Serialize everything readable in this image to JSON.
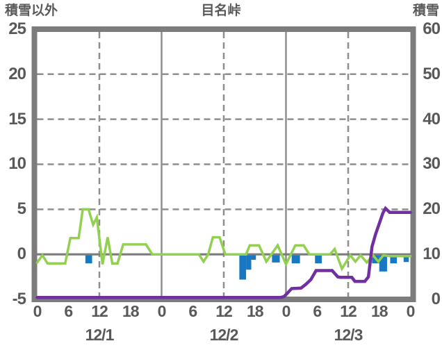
{
  "header": {
    "left_axis_title": "積雪以外",
    "chart_title": "目名峠",
    "right_axis_title": "積雪"
  },
  "colors": {
    "background": "#FFFFFF",
    "text": "#595959",
    "plot_border": "#7C7C7C",
    "gridline": "#8E8E8E",
    "zero_line": "#7C7C7C",
    "green_line": "#92D050",
    "blue_bars": "#1879C2",
    "purple_line": "#7030A0"
  },
  "chart_data": {
    "type": "line+bar",
    "title": "目名峠",
    "legend": "none",
    "grid": true,
    "left_axis": {
      "label": "積雪以外",
      "range": [
        -5,
        25
      ],
      "ticks": [
        25,
        20,
        15,
        10,
        5,
        0,
        -5
      ],
      "dashed_gridline_values": [
        20,
        15,
        10,
        5
      ],
      "zero_line_value": 0
    },
    "right_axis": {
      "label": "積雪",
      "range": [
        0,
        60
      ],
      "ticks": [
        60,
        50,
        40,
        30,
        20,
        10,
        0
      ]
    },
    "x_axis": {
      "range_hours": [
        0,
        72
      ],
      "tick_interval_hours": 6,
      "tick_labels": [
        "0",
        "6",
        "12",
        "18",
        "0",
        "6",
        "12",
        "18",
        "0",
        "6",
        "12",
        "18",
        "0"
      ],
      "day_labels": [
        {
          "label": "12/1",
          "center_hour": 12
        },
        {
          "label": "12/2",
          "center_hour": 36
        },
        {
          "label": "12/3",
          "center_hour": 60
        }
      ],
      "solid_gridlines_hours": [
        24,
        48
      ],
      "dashed_gridlines_hours": [
        12,
        36,
        60
      ]
    },
    "series": [
      {
        "id": "green-line",
        "type": "line",
        "axis": "left",
        "color": "#92D050",
        "points": [
          [
            0,
            -0.9
          ],
          [
            1,
            -0.1
          ],
          [
            2,
            -1
          ],
          [
            5.4,
            -1
          ],
          [
            6.4,
            1.8
          ],
          [
            8,
            1.8
          ],
          [
            8.8,
            5
          ],
          [
            9.9,
            5
          ],
          [
            10.8,
            3.3
          ],
          [
            11.5,
            4.1
          ],
          [
            12.6,
            -1.1
          ],
          [
            13.6,
            1.9
          ],
          [
            14.5,
            -1
          ],
          [
            15.5,
            -1
          ],
          [
            16.6,
            1.1
          ],
          [
            21,
            1.1
          ],
          [
            22.2,
            0
          ],
          [
            31.2,
            0
          ],
          [
            32.1,
            -0.8
          ],
          [
            33,
            0
          ],
          [
            33.9,
            1.9
          ],
          [
            35.2,
            1.9
          ],
          [
            36.3,
            0
          ],
          [
            40.3,
            0
          ],
          [
            41,
            1
          ],
          [
            42.8,
            1
          ],
          [
            44.2,
            -0.8
          ],
          [
            46.4,
            1
          ],
          [
            48,
            -1.1
          ],
          [
            49.8,
            1
          ],
          [
            51.4,
            1
          ],
          [
            52.5,
            0
          ],
          [
            56.5,
            0
          ],
          [
            57.4,
            0.6
          ],
          [
            58.8,
            -1.6
          ],
          [
            60.4,
            -0.1
          ],
          [
            61.4,
            -0.8
          ],
          [
            62.4,
            -0.1
          ],
          [
            63.6,
            -0.9
          ],
          [
            64.8,
            -0.1
          ],
          [
            65.8,
            -0.8
          ],
          [
            66.8,
            -0.1
          ],
          [
            68,
            -0.2
          ],
          [
            72,
            -0.2
          ]
        ]
      },
      {
        "id": "blue-bars",
        "type": "bar",
        "axis": "left",
        "color": "#1879C2",
        "bars": [
          {
            "from_hour": 9.3,
            "to_hour": 10.6,
            "value": -1.0
          },
          {
            "from_hour": 39.0,
            "to_hour": 40.3,
            "value": -2.8
          },
          {
            "from_hour": 40.3,
            "to_hour": 41.3,
            "value": -1.7
          },
          {
            "from_hour": 41.3,
            "to_hour": 42.2,
            "value": -0.6
          },
          {
            "from_hour": 45.3,
            "to_hour": 46.8,
            "value": -0.9
          },
          {
            "from_hour": 49.1,
            "to_hour": 50.7,
            "value": -1.0
          },
          {
            "from_hour": 53.6,
            "to_hour": 54.9,
            "value": -1.0
          },
          {
            "from_hour": 64.6,
            "to_hour": 66.0,
            "value": -1.0
          },
          {
            "from_hour": 66.0,
            "to_hour": 67.5,
            "value": -1.9
          },
          {
            "from_hour": 68.1,
            "to_hour": 69.4,
            "value": -1.0
          },
          {
            "from_hour": 70.7,
            "to_hour": 71.7,
            "value": -0.85
          }
        ]
      },
      {
        "id": "purple-line",
        "type": "line",
        "axis": "right",
        "color": "#7030A0",
        "points": [
          [
            0,
            0
          ],
          [
            46.9,
            0
          ],
          [
            47.6,
            0.6
          ],
          [
            48.2,
            1.3
          ],
          [
            49.1,
            2.4
          ],
          [
            50.9,
            2.5
          ],
          [
            51.9,
            3.4
          ],
          [
            52.8,
            4.4
          ],
          [
            53.8,
            6.4
          ],
          [
            56.9,
            6.4
          ],
          [
            58,
            5.0
          ],
          [
            58.5,
            4.9
          ],
          [
            60.7,
            4.9
          ],
          [
            61.3,
            4.0
          ],
          [
            63.2,
            4.0
          ],
          [
            63.9,
            5.0
          ],
          [
            64.6,
            11.7
          ],
          [
            65.3,
            14.5
          ],
          [
            66,
            16.8
          ],
          [
            66.7,
            19.2
          ],
          [
            67.2,
            20.2
          ],
          [
            68,
            19.3
          ],
          [
            72,
            19.3
          ]
        ]
      }
    ]
  }
}
